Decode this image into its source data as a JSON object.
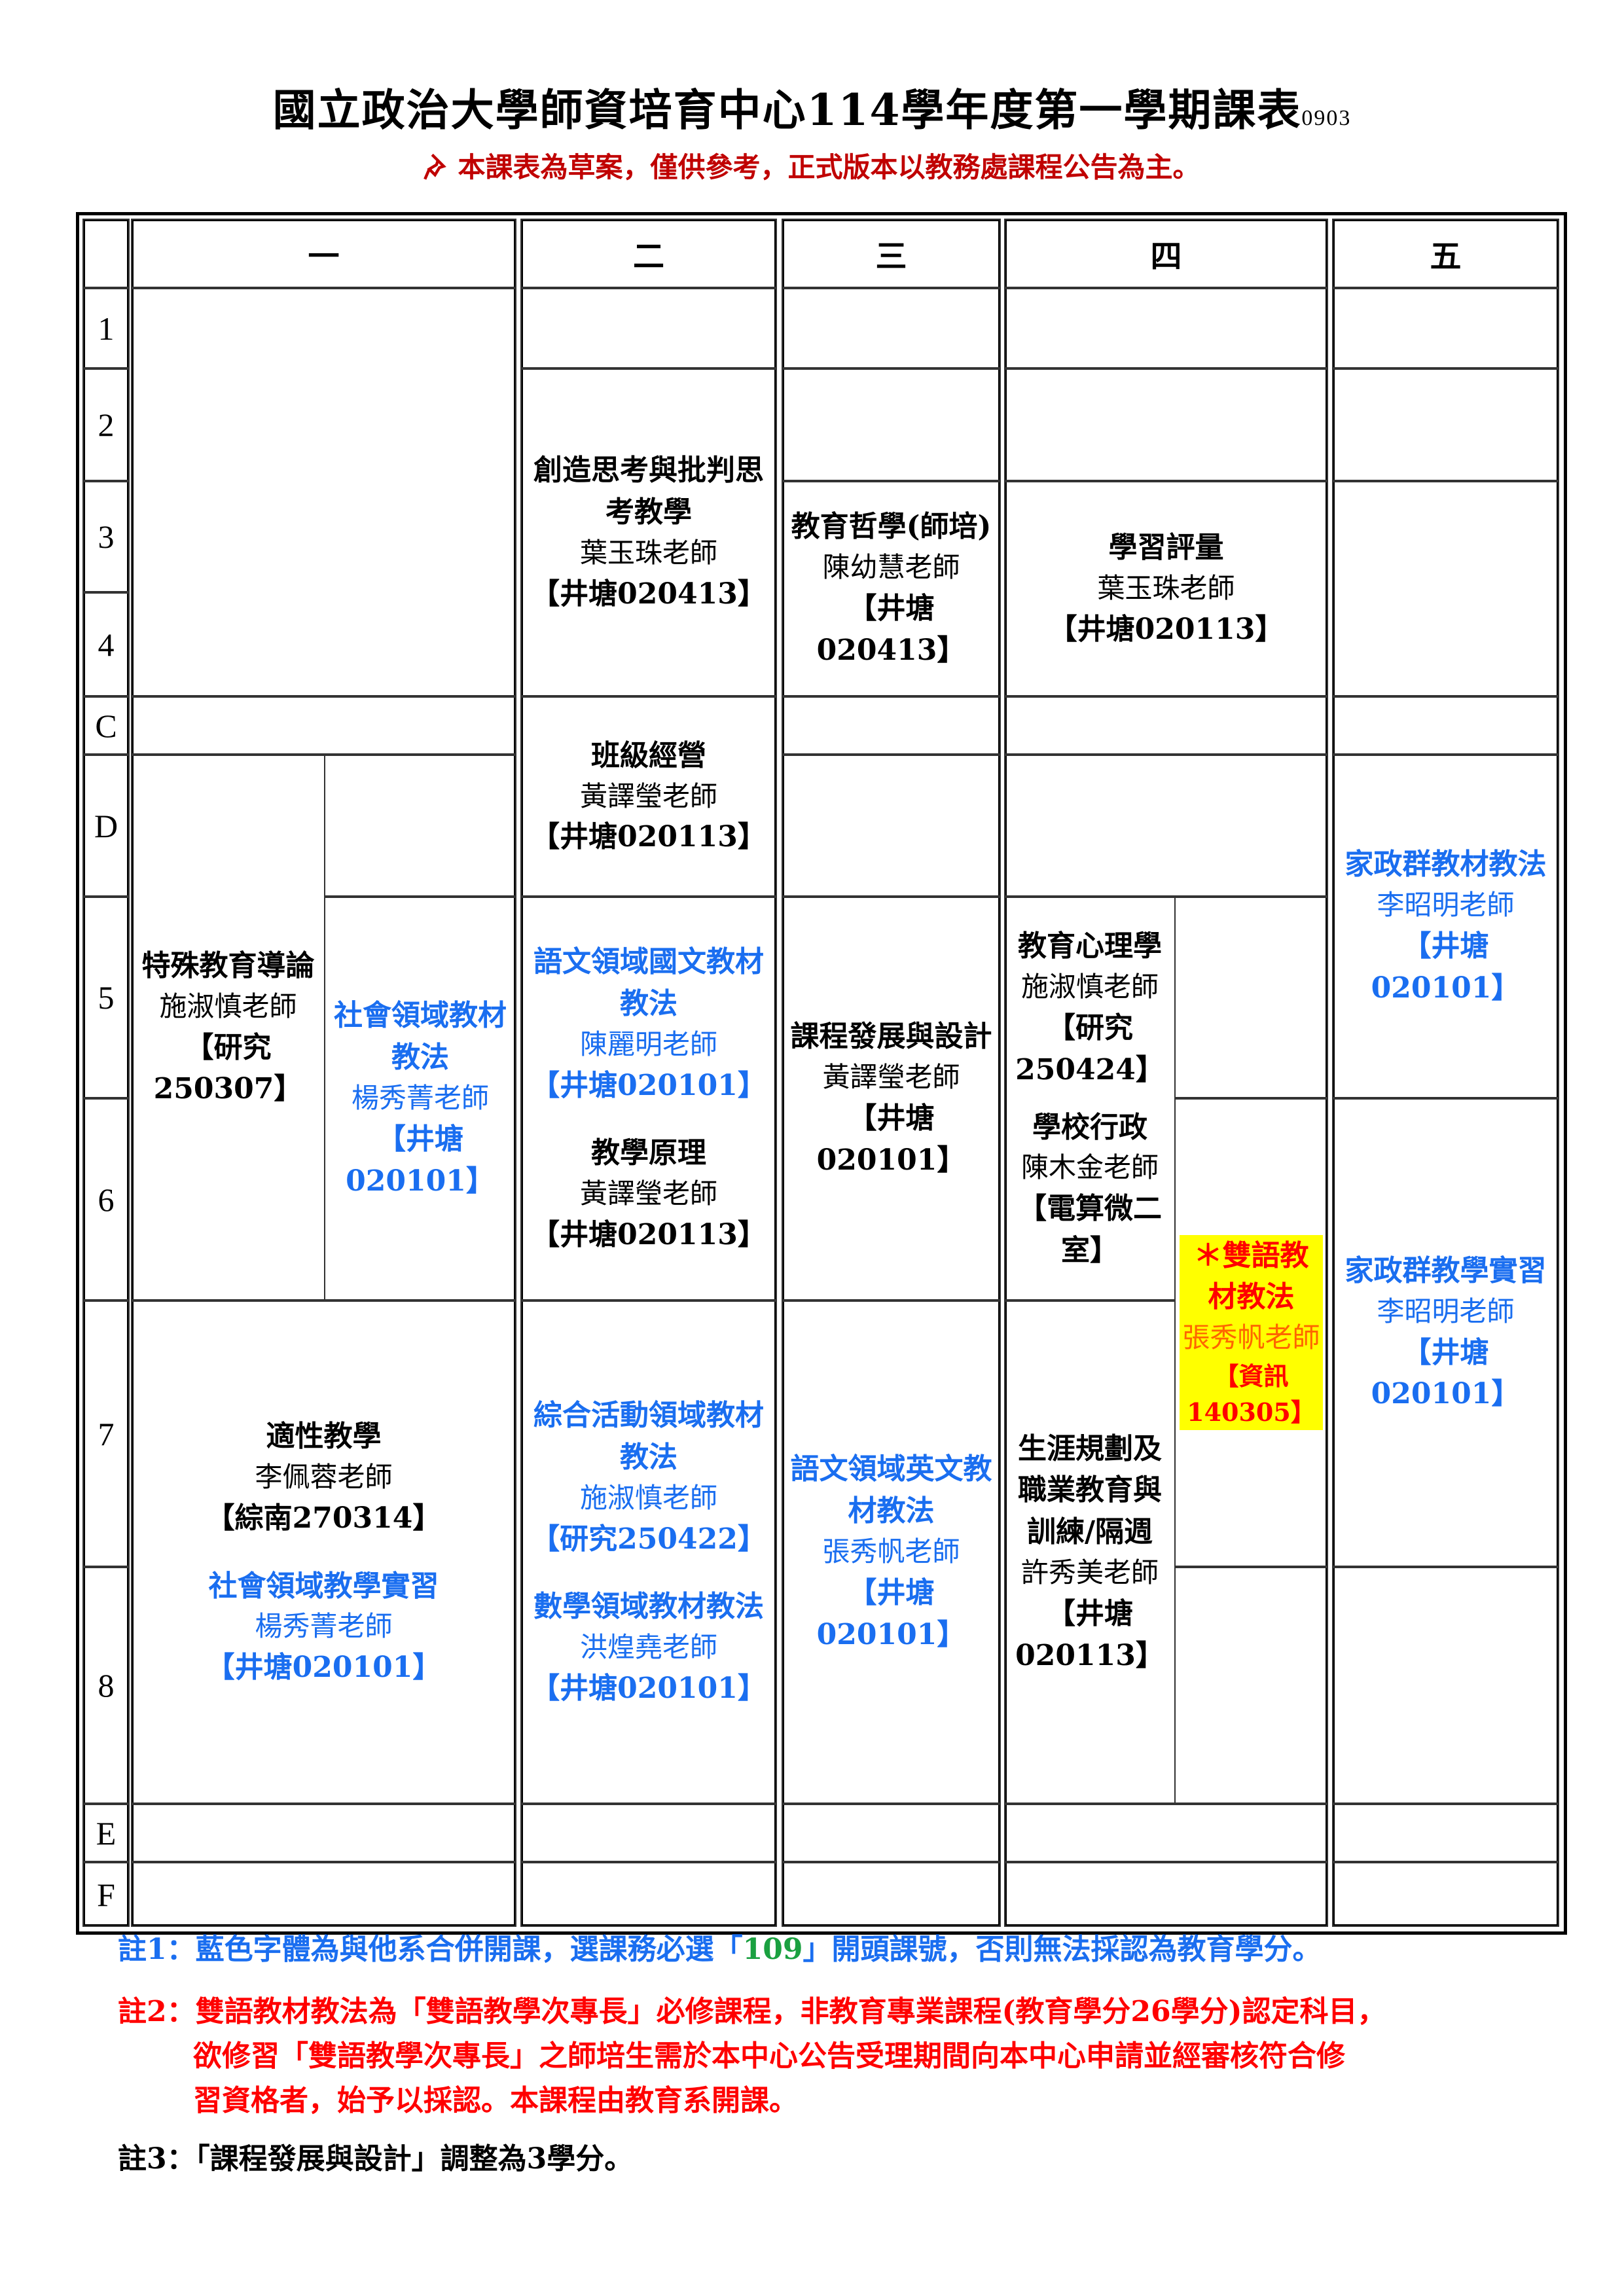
{
  "header": {
    "title": "國立政治大學師資培育中心114學年度第一學期課表",
    "version": "0903",
    "pin_icon": "pushpin-icon",
    "subtitle": "本課表為草案，僅供參考，正式版本以教務處課程公告為主。"
  },
  "table": {
    "days": [
      "一",
      "二",
      "三",
      "四",
      "五"
    ],
    "periods": [
      "1",
      "2",
      "3",
      "4",
      "C",
      "D",
      "5",
      "6",
      "7",
      "8",
      "E",
      "F"
    ]
  },
  "courses": {
    "mon_special_ed": {
      "title": "特殊教育導論",
      "teacher": "施淑慎老師",
      "room": "【研究250307】"
    },
    "mon_social_method": {
      "title": "社會領域教材教法",
      "teacher": "楊秀菁老師",
      "room": "【井塘020101】"
    },
    "mon_adaptive": {
      "title": "適性教學",
      "teacher": "李佩蓉老師",
      "room": "【綜南270314】"
    },
    "mon_social_practicum": {
      "title": "社會領域教學實習",
      "teacher": "楊秀菁老師",
      "room": "【井塘020101】"
    },
    "tue_creative": {
      "title": "創造思考與批判思考教學",
      "teacher": "葉玉珠老師",
      "room": "【井塘020413】"
    },
    "tue_classroom": {
      "title": "班級經營",
      "teacher": "黃譯瑩老師",
      "room": "【井塘020113】"
    },
    "tue_chinese_method": {
      "title": "語文領域國文教材教法",
      "teacher": "陳麗明老師",
      "room": "【井塘020101】"
    },
    "tue_principles": {
      "title": "教學原理",
      "teacher": "黃譯瑩老師",
      "room": "【井塘020113】"
    },
    "tue_integrative": {
      "title": "綜合活動領域教材教法",
      "teacher": "施淑慎老師",
      "room": "【研究250422】"
    },
    "tue_math": {
      "title": "數學領域教材教法",
      "teacher": "洪煌堯老師",
      "room": "【井塘020101】"
    },
    "wed_philosophy": {
      "title": "教育哲學(師培)",
      "teacher": "陳幼慧老師",
      "room": "【井塘020413】"
    },
    "wed_curriculum": {
      "title": "課程發展與設計",
      "teacher": "黃譯瑩老師",
      "room": "【井塘020101】"
    },
    "wed_english_method": {
      "title": "語文領域英文教材教法",
      "teacher": "張秀帆老師",
      "room": "【井塘020101】"
    },
    "thu_assessment": {
      "title": "學習評量",
      "teacher": "葉玉珠老師",
      "room": "【井塘020113】"
    },
    "thu_psychology": {
      "title": "教育心理學",
      "teacher": "施淑慎老師",
      "room": "【研究250424】"
    },
    "thu_admin": {
      "title": "學校行政",
      "teacher": "陳木金老師",
      "room": "【電算微二室】"
    },
    "thu_bilingual": {
      "title": "＊雙語教材教法",
      "teacher": "張秀帆老師",
      "room": "【資訊140305】"
    },
    "thu_career": {
      "title": "生涯規劃及職業教育與訓練/隔週",
      "teacher": "許秀美老師",
      "room": "【井塘020113】"
    },
    "fri_home_method": {
      "title": "家政群教材教法",
      "teacher": "李昭明老師",
      "room": "【井塘020101】"
    },
    "fri_home_practicum": {
      "title": "家政群教學實習",
      "teacher": "李昭明老師",
      "room": "【井塘020101】"
    }
  },
  "notes": {
    "note1_pre": "註1：藍色字體為與他系合併開課，選課務必選「",
    "note1_code": "109",
    "note1_post": "」開頭課號，否則無法採認為教育學分。",
    "note2_line1": "註2：雙語教材教法為「雙語教學次專長」必修課程，非教育專業課程(教育學分26學分)認定科目，",
    "note2_line2": "欲修習「雙語教學次專長」之師培生需於本中心公告受理期間向本中心申請並經審核符合修",
    "note2_line3": "習資格者，始予以採認。本課程由教育系開課。",
    "note3": "註3：「課程發展與設計」調整為3學分。"
  },
  "colors": {
    "joint_course": "#1a6ef0",
    "bilingual_text": "#ff0000",
    "bilingual_highlight": "#ffff00",
    "disclaimer": "#c00000",
    "code_109": "#1aa040"
  }
}
